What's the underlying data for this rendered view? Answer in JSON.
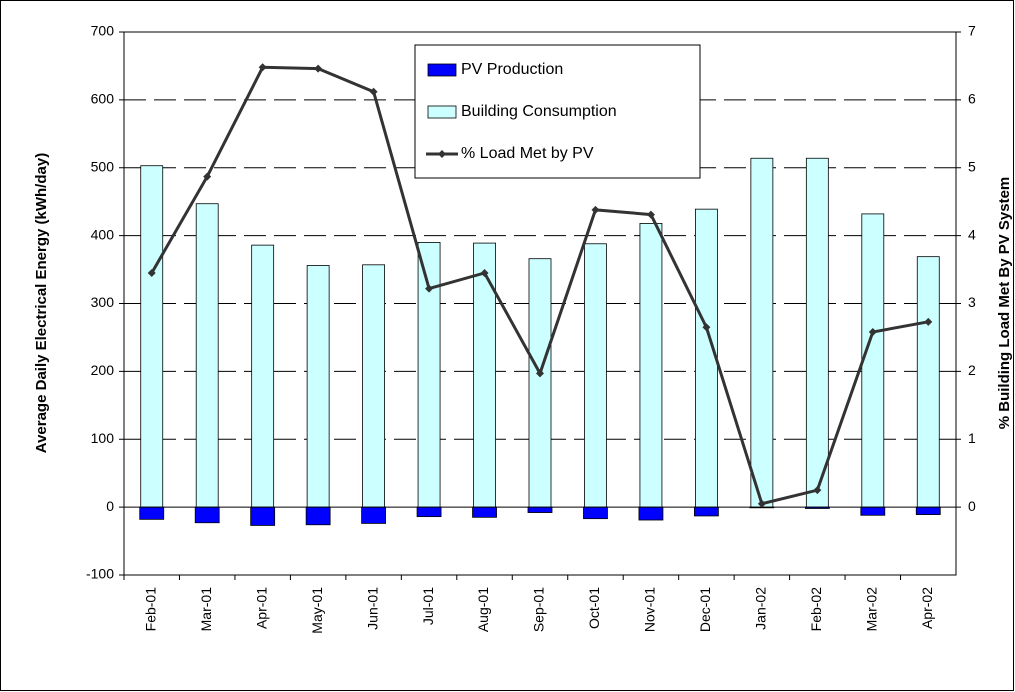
{
  "chart_data": {
    "type": "bar",
    "y_label": "Average Daily Electrical Energy (kWh/day)",
    "y2_label": "% Building Load Met By PV System",
    "categories": [
      "Feb-01",
      "Mar-01",
      "Apr-01",
      "May-01",
      "Jun-01",
      "Jul-01",
      "Aug-01",
      "Sep-01",
      "Oct-01",
      "Nov-01",
      "Dec-01",
      "Jan-02",
      "Feb-02",
      "Mar-02",
      "Apr-02"
    ],
    "series": [
      {
        "name": "PV Production",
        "color": "#0000ff",
        "type": "bar",
        "values": [
          -18,
          -23,
          -27,
          -26,
          -24,
          -14,
          -15,
          -8,
          -17,
          -19,
          -13,
          -1,
          -2,
          -12,
          -11
        ]
      },
      {
        "name": "Building Consumption",
        "color": "#ccffff",
        "type": "bar",
        "values": [
          503,
          447,
          386,
          356,
          357,
          390,
          389,
          366,
          388,
          418,
          439,
          514,
          514,
          432,
          369
        ]
      },
      {
        "name": "% Load Met by PV",
        "color": "#333333",
        "type": "line",
        "axis": "y2",
        "values": [
          3.45,
          4.87,
          6.48,
          6.46,
          6.12,
          3.22,
          3.45,
          1.97,
          4.38,
          4.31,
          2.65,
          0.05,
          0.25,
          2.58,
          2.73
        ]
      }
    ],
    "ylim": [
      -100,
      700
    ],
    "yticks": [
      -100,
      0,
      100,
      200,
      300,
      400,
      500,
      600,
      700
    ],
    "y2lim": [
      -1,
      7
    ],
    "y2ticks": [
      0,
      1,
      2,
      3,
      4,
      5,
      6,
      7
    ],
    "grid": true,
    "legend": "top"
  }
}
